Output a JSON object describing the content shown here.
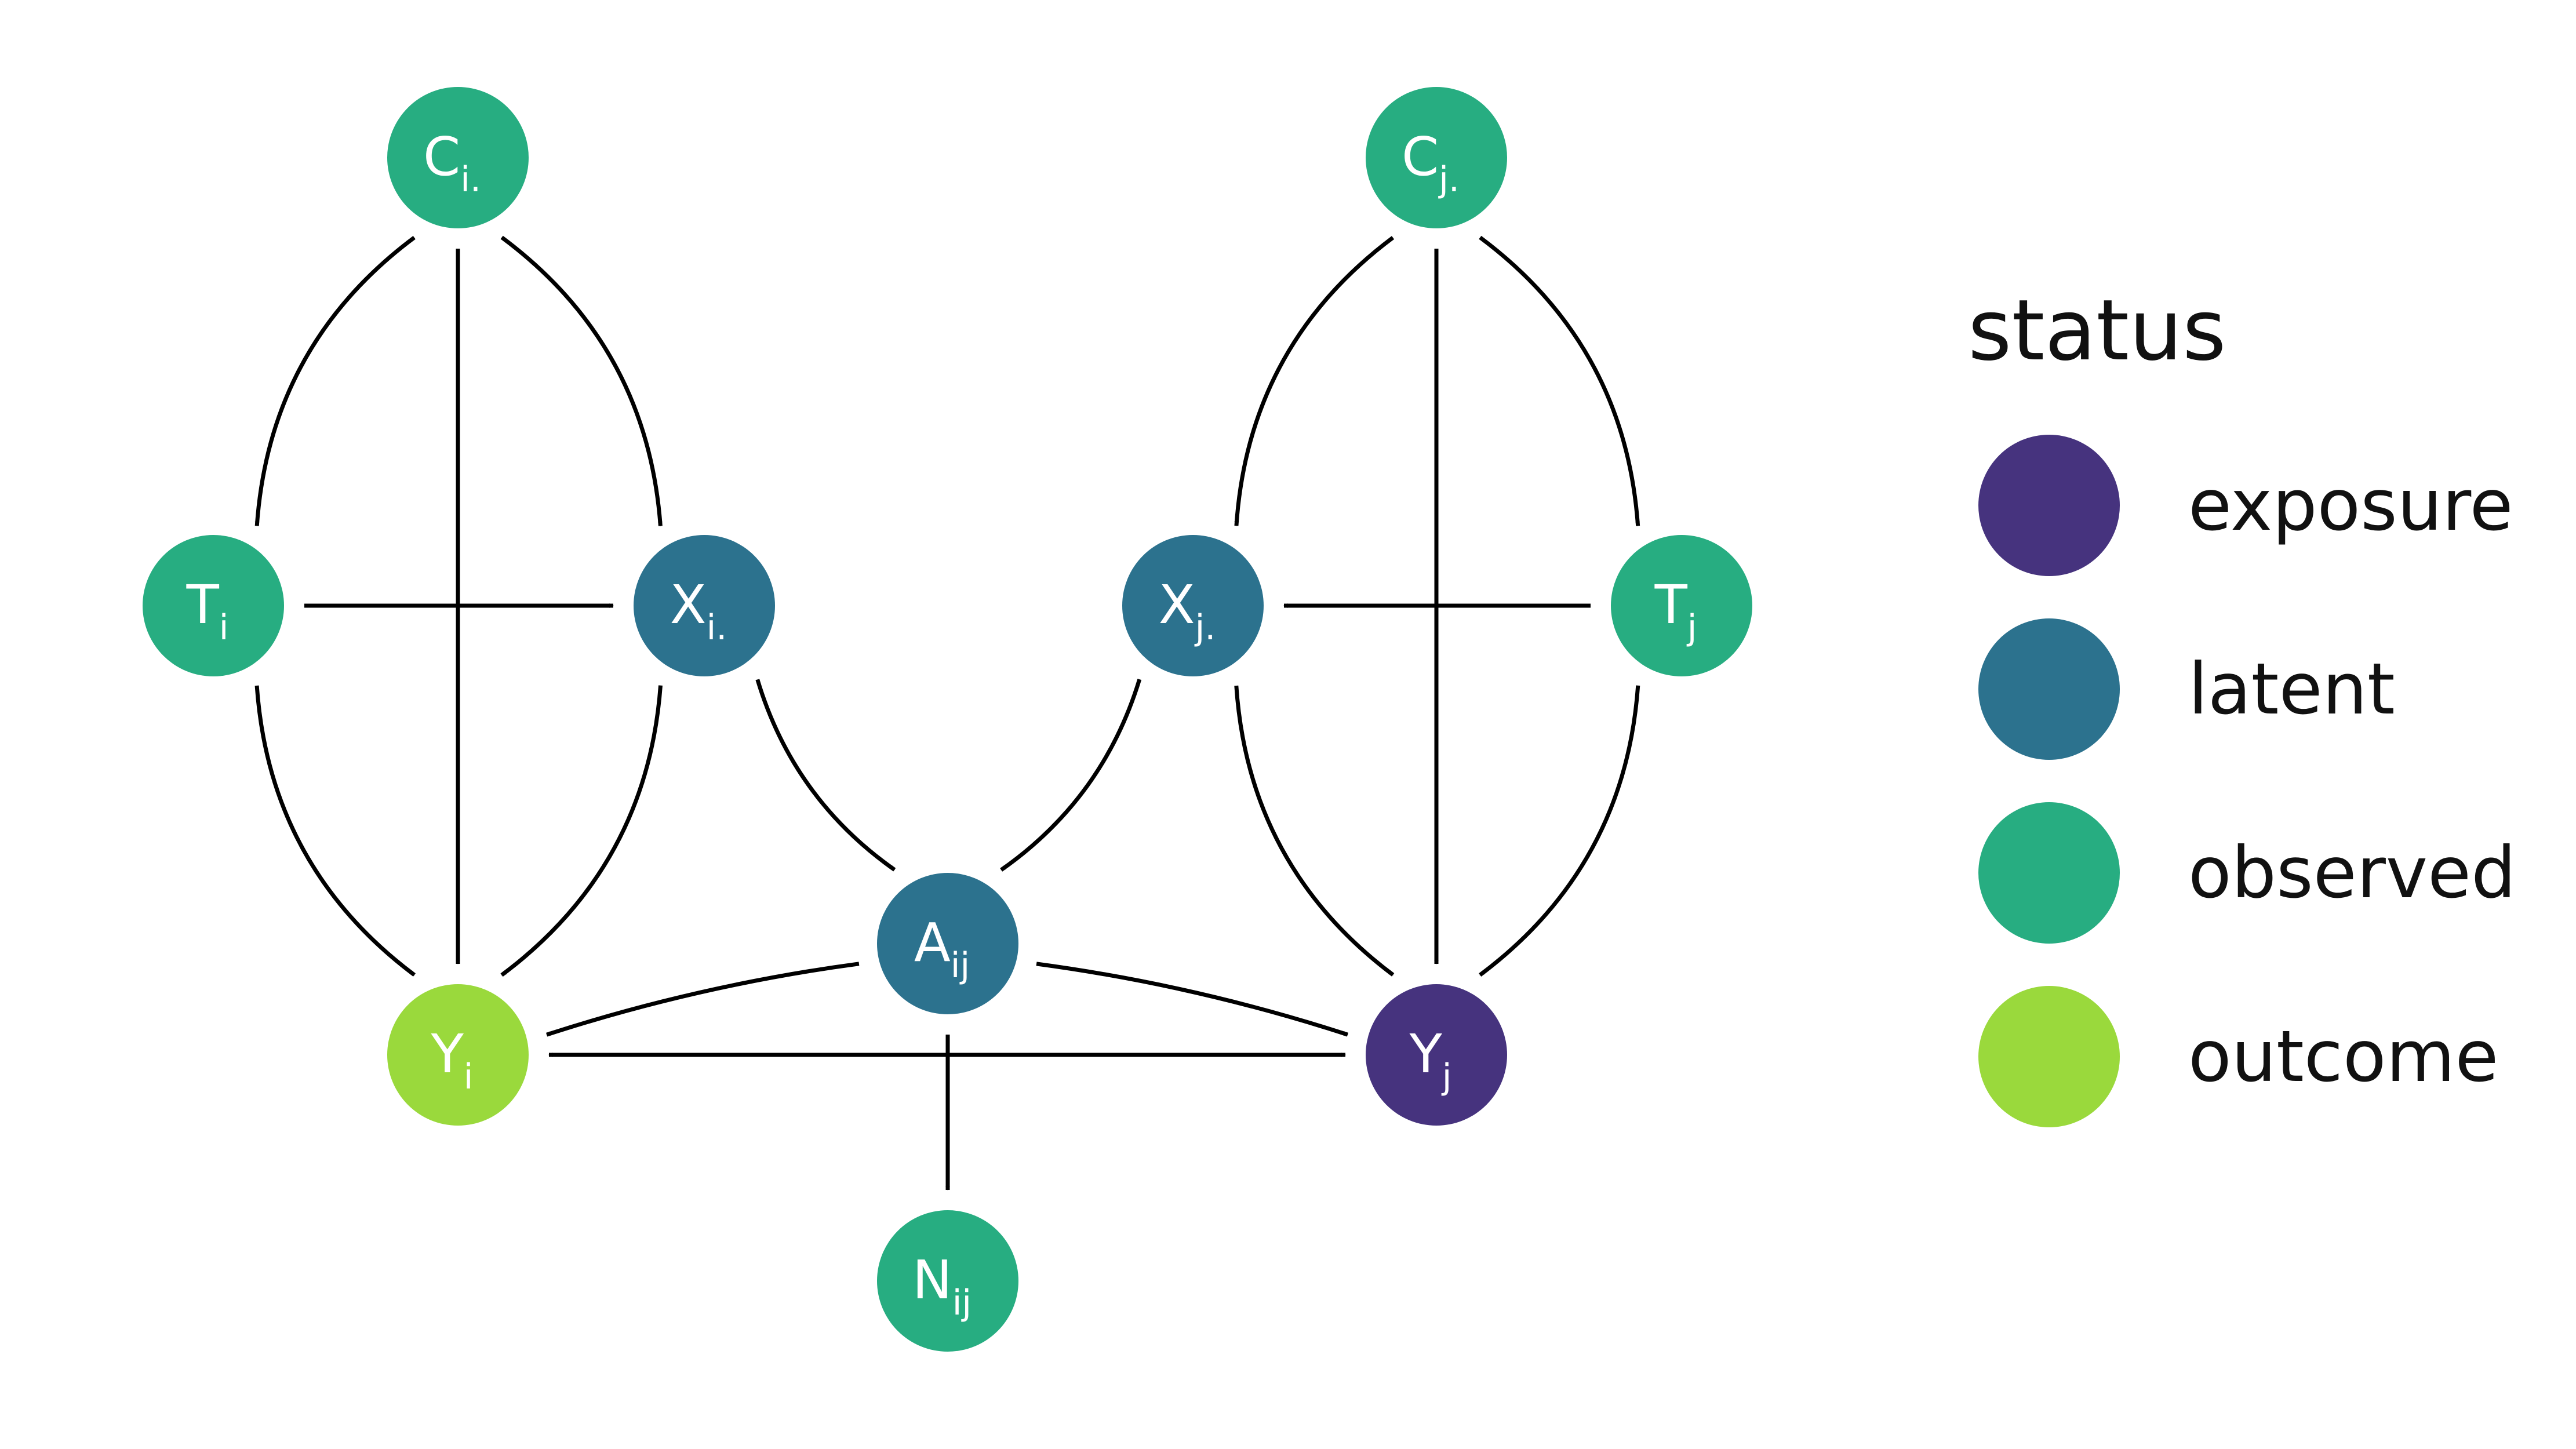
{
  "nodes": [
    {
      "id": "Ci",
      "base": "C",
      "sub": "i.",
      "status": "observed"
    },
    {
      "id": "Cj",
      "base": "C",
      "sub": "j.",
      "status": "observed"
    },
    {
      "id": "Ti",
      "base": "T",
      "sub": "i",
      "status": "observed"
    },
    {
      "id": "Xi",
      "base": "X",
      "sub": "i.",
      "status": "latent"
    },
    {
      "id": "Xj",
      "base": "X",
      "sub": "j.",
      "status": "latent"
    },
    {
      "id": "Tj",
      "base": "T",
      "sub": "j",
      "status": "observed"
    },
    {
      "id": "Aij",
      "base": "A",
      "sub": "ij",
      "status": "latent"
    },
    {
      "id": "Yi",
      "base": "Y",
      "sub": "i",
      "status": "outcome"
    },
    {
      "id": "Yj",
      "base": "Y",
      "sub": "j",
      "status": "exposure"
    },
    {
      "id": "Nij",
      "base": "N",
      "sub": "ij",
      "status": "observed"
    }
  ],
  "edges": [
    {
      "from": "Ci",
      "to": "Ti"
    },
    {
      "from": "Ci",
      "to": "Yi"
    },
    {
      "from": "Ci",
      "to": "Xi"
    },
    {
      "from": "Cj",
      "to": "Xj"
    },
    {
      "from": "Cj",
      "to": "Yj"
    },
    {
      "from": "Cj",
      "to": "Tj"
    },
    {
      "from": "Ti",
      "to": "Xi"
    },
    {
      "from": "Tj",
      "to": "Xj"
    },
    {
      "from": "Ti",
      "to": "Yi"
    },
    {
      "from": "Xi",
      "to": "Yi"
    },
    {
      "from": "Xi",
      "to": "Aij"
    },
    {
      "from": "Xj",
      "to": "Aij"
    },
    {
      "from": "Xj",
      "to": "Yj"
    },
    {
      "from": "Tj",
      "to": "Yj"
    },
    {
      "from": "Aij",
      "to": "Yi"
    },
    {
      "from": "Aij",
      "to": "Yj"
    },
    {
      "from": "Aij",
      "to": "Nij"
    },
    {
      "from": "Yi",
      "to": "Yj",
      "bidirected": true
    }
  ],
  "legend": {
    "title": "status",
    "items": [
      {
        "key": "exposure",
        "label": "exposure"
      },
      {
        "key": "latent",
        "label": "latent"
      },
      {
        "key": "observed",
        "label": "observed"
      },
      {
        "key": "outcome",
        "label": "outcome"
      }
    ]
  },
  "colors": {
    "exposure": "#46337E",
    "latent": "#2C728E",
    "observed": "#27AD81",
    "outcome": "#9AD93C",
    "edge": "#000000"
  }
}
